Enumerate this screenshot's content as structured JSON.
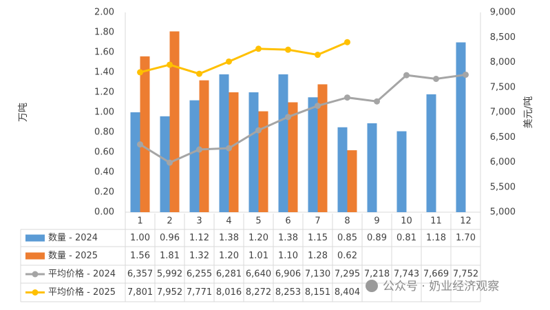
{
  "chart_data": {
    "type": "bar-line",
    "categories": [
      "1",
      "2",
      "3",
      "4",
      "5",
      "6",
      "7",
      "8",
      "9",
      "10",
      "11",
      "12"
    ],
    "ylabel": "万吨",
    "y2label": "美元/吨",
    "ylim": [
      0,
      2
    ],
    "yticks": [
      {
        "value": 0,
        "label": "0.00"
      },
      {
        "value": 0.2,
        "label": "0.20"
      },
      {
        "value": 0.4,
        "label": "0.40"
      },
      {
        "value": 0.6,
        "label": "0.60"
      },
      {
        "value": 0.8,
        "label": "0.80"
      },
      {
        "value": 1,
        "label": "1.00"
      },
      {
        "value": 1.2,
        "label": "1.20"
      },
      {
        "value": 1.4,
        "label": "1.40"
      },
      {
        "value": 1.6,
        "label": "1.60"
      },
      {
        "value": 1.8,
        "label": "1.80"
      },
      {
        "value": 2,
        "label": "2.00"
      }
    ],
    "y2lim": [
      5000,
      9000
    ],
    "y2ticks": [
      {
        "value": 5000,
        "label": "5,000"
      },
      {
        "value": 5500,
        "label": "5,500"
      },
      {
        "value": 6000,
        "label": "6,000"
      },
      {
        "value": 6500,
        "label": "6,500"
      },
      {
        "value": 7000,
        "label": "7,000"
      },
      {
        "value": 7500,
        "label": "7,500"
      },
      {
        "value": 8000,
        "label": "8,000"
      },
      {
        "value": 8500,
        "label": "8,500"
      },
      {
        "value": 9000,
        "label": "9,000"
      }
    ],
    "grid": false,
    "series": [
      {
        "name": "数量 - 2024",
        "type": "bar",
        "color": "#5b9bd5",
        "values": [
          1.0,
          0.96,
          1.12,
          1.38,
          1.2,
          1.38,
          1.15,
          0.85,
          0.89,
          0.81,
          1.18,
          1.7
        ],
        "value_labels": [
          "1.00",
          "0.96",
          "1.12",
          "1.38",
          "1.20",
          "1.38",
          "1.15",
          "0.85",
          "0.89",
          "0.81",
          "1.18",
          "1.70"
        ]
      },
      {
        "name": "数量 - 2025",
        "type": "bar",
        "color": "#ed7d31",
        "values": [
          1.56,
          1.81,
          1.32,
          1.2,
          1.01,
          1.1,
          1.28,
          0.62,
          null,
          null,
          null,
          null
        ],
        "value_labels": [
          "1.56",
          "1.81",
          "1.32",
          "1.20",
          "1.01",
          "1.10",
          "1.28",
          "0.62",
          null,
          null,
          null,
          null
        ]
      },
      {
        "name": "平均价格 - 2024",
        "type": "line",
        "axis": "y2",
        "color": "#a5a5a5",
        "values": [
          6357,
          5992,
          6255,
          6281,
          6640,
          6906,
          7130,
          7295,
          7218,
          7743,
          7669,
          7752
        ],
        "value_labels": [
          "6,357",
          "5,992",
          "6,255",
          "6,281",
          "6,640",
          "6,906",
          "7,130",
          "7,295",
          "7,218",
          "7,743",
          "7,669",
          "7,752"
        ]
      },
      {
        "name": "平均价格 - 2025",
        "type": "line",
        "axis": "y2",
        "color": "#ffc000",
        "values": [
          7801,
          7952,
          7771,
          8016,
          8272,
          8253,
          8151,
          8404,
          null,
          null,
          null,
          null
        ],
        "value_labels": [
          "7,801",
          "7,952",
          "7,771",
          "8,016",
          "8,272",
          "8,253",
          "8,151",
          "8,404",
          null,
          null,
          null,
          null
        ]
      }
    ]
  },
  "watermark": "公众号 · 奶业经济观察"
}
